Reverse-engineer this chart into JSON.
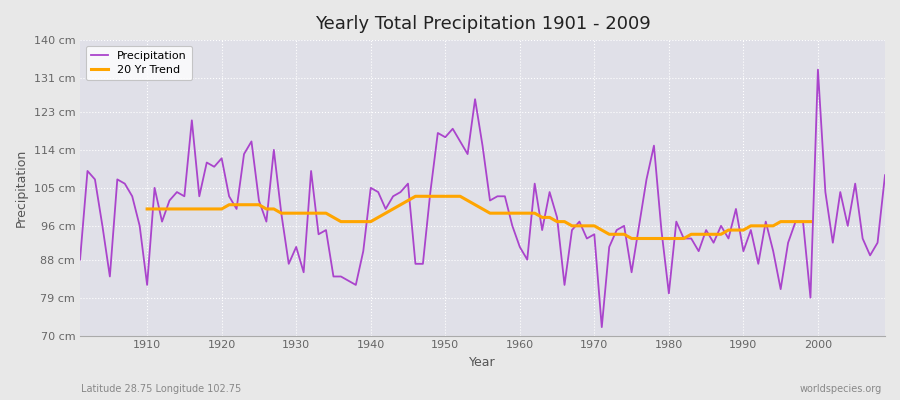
{
  "title": "Yearly Total Precipitation 1901 - 2009",
  "xlabel": "Year",
  "ylabel": "Precipitation",
  "subtitle": "Latitude 28.75 Longitude 102.75",
  "watermark": "worldspecies.org",
  "precip_color": "#AA44CC",
  "trend_color": "#FFA500",
  "bg_color": "#E8E8E8",
  "plot_bg_color": "#E0E0E8",
  "grid_color": "#FFFFFF",
  "yticks": [
    70,
    79,
    88,
    96,
    105,
    114,
    123,
    131,
    140
  ],
  "ytick_labels": [
    "70 cm",
    "79 cm",
    "88 cm",
    "96 cm",
    "105 cm",
    "114 cm",
    "123 cm",
    "131 cm",
    "140 cm"
  ],
  "years": [
    1901,
    1902,
    1903,
    1904,
    1905,
    1906,
    1907,
    1908,
    1909,
    1910,
    1911,
    1912,
    1913,
    1914,
    1915,
    1916,
    1917,
    1918,
    1919,
    1920,
    1921,
    1922,
    1923,
    1924,
    1925,
    1926,
    1927,
    1928,
    1929,
    1930,
    1931,
    1932,
    1933,
    1934,
    1935,
    1936,
    1937,
    1938,
    1939,
    1940,
    1941,
    1942,
    1943,
    1944,
    1945,
    1946,
    1947,
    1948,
    1949,
    1950,
    1951,
    1952,
    1953,
    1954,
    1955,
    1956,
    1957,
    1958,
    1959,
    1960,
    1961,
    1962,
    1963,
    1964,
    1965,
    1966,
    1967,
    1968,
    1969,
    1970,
    1971,
    1972,
    1973,
    1974,
    1975,
    1976,
    1977,
    1978,
    1979,
    1980,
    1981,
    1982,
    1983,
    1984,
    1985,
    1986,
    1987,
    1988,
    1989,
    1990,
    1991,
    1992,
    1993,
    1994,
    1995,
    1996,
    1997,
    1998,
    1999,
    2000,
    2001,
    2002,
    2003,
    2004,
    2005,
    2006,
    2007,
    2008,
    2009
  ],
  "precip": [
    88,
    109,
    107,
    96,
    84,
    107,
    106,
    103,
    96,
    82,
    105,
    97,
    102,
    104,
    103,
    121,
    103,
    111,
    110,
    112,
    103,
    100,
    113,
    116,
    102,
    97,
    114,
    99,
    87,
    91,
    85,
    109,
    94,
    95,
    84,
    84,
    83,
    82,
    90,
    105,
    104,
    100,
    103,
    104,
    106,
    87,
    87,
    104,
    118,
    117,
    119,
    116,
    113,
    126,
    115,
    102,
    103,
    103,
    96,
    91,
    88,
    106,
    95,
    104,
    98,
    82,
    95,
    97,
    93,
    94,
    72,
    91,
    95,
    96,
    85,
    96,
    107,
    115,
    95,
    80,
    97,
    93,
    93,
    90,
    95,
    92,
    96,
    93,
    100,
    90,
    95,
    87,
    97,
    90,
    81,
    92,
    97,
    97,
    79,
    133,
    104,
    92,
    104,
    96,
    106,
    93,
    89,
    92,
    108
  ],
  "trend": [
    null,
    null,
    null,
    null,
    null,
    null,
    null,
    null,
    null,
    100,
    100,
    100,
    100,
    100,
    100,
    100,
    100,
    100,
    100,
    100,
    101,
    101,
    101,
    101,
    101,
    100,
    100,
    99,
    99,
    99,
    99,
    99,
    99,
    99,
    98,
    97,
    97,
    97,
    97,
    97,
    98,
    99,
    100,
    101,
    102,
    103,
    103,
    103,
    103,
    103,
    103,
    103,
    102,
    101,
    100,
    99,
    99,
    99,
    99,
    99,
    99,
    99,
    98,
    98,
    97,
    97,
    96,
    96,
    96,
    96,
    95,
    94,
    94,
    94,
    93,
    93,
    93,
    93,
    93,
    93,
    93,
    93,
    94,
    94,
    94,
    94,
    94,
    95,
    95,
    95,
    96,
    96,
    96,
    96,
    97,
    97,
    97,
    97,
    97,
    null,
    null,
    null,
    null,
    null,
    null,
    null,
    null,
    null,
    null
  ]
}
